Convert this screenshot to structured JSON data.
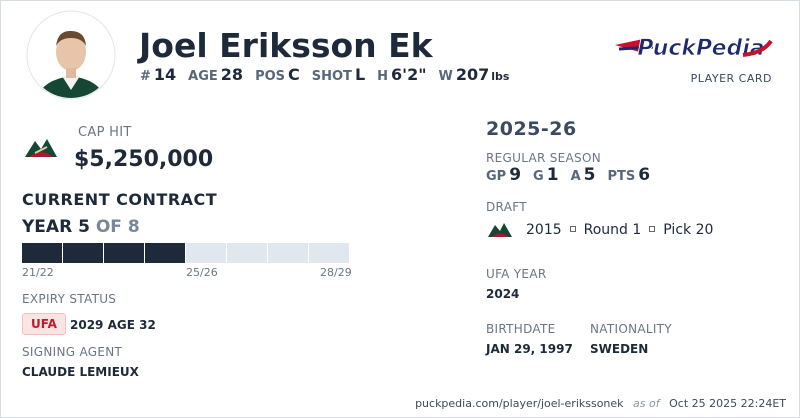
{
  "header": {
    "name": "Joel Eriksson Ek",
    "bio": [
      {
        "label": "#",
        "value": 14
      },
      {
        "label": "AGE",
        "value": 28
      },
      {
        "label": "POS",
        "value": "C"
      },
      {
        "label": "SHOT",
        "value": "L"
      },
      {
        "label": "H",
        "value": "6'2\""
      },
      {
        "label": "W",
        "value": 207,
        "unit": "lbs"
      }
    ],
    "brand": "PuckPedia",
    "brand_sub": "PLAYER CARD"
  },
  "cap": {
    "label": "CAP HIT",
    "value": "$5,250,000"
  },
  "contract": {
    "title": "CURRENT CONTRACT",
    "year_label": "YEAR",
    "year": 5,
    "of_label": "OF",
    "total_years": 8,
    "ticks": [
      "21/22",
      "25/26",
      "28/29"
    ]
  },
  "expiry": {
    "label": "EXPIRY STATUS",
    "status": "UFA",
    "detail": "2029 AGE 32"
  },
  "agent": {
    "label": "SIGNING AGENT",
    "name": "CLAUDE LEMIEUX"
  },
  "season": {
    "title": "2025-26",
    "label": "REGULAR SEASON",
    "stats": [
      {
        "label": "GP",
        "value": 9
      },
      {
        "label": "G",
        "value": 1
      },
      {
        "label": "A",
        "value": 5
      },
      {
        "label": "PTS",
        "value": 6
      }
    ]
  },
  "draft": {
    "label": "DRAFT",
    "year": 2015,
    "round": "Round 1",
    "pick": "Pick 20"
  },
  "ufa_year": {
    "label": "UFA YEAR",
    "value": 2024
  },
  "birthdate": {
    "label": "BIRTHDATE",
    "value": "JAN 29, 1997"
  },
  "nationality": {
    "label": "NATIONALITY",
    "value": "SWEDEN"
  },
  "footer": {
    "url": "puckpedia.com/player/joel-erikssonek",
    "as_of": "as of",
    "date": "Oct 25 2025 22:24ET"
  }
}
